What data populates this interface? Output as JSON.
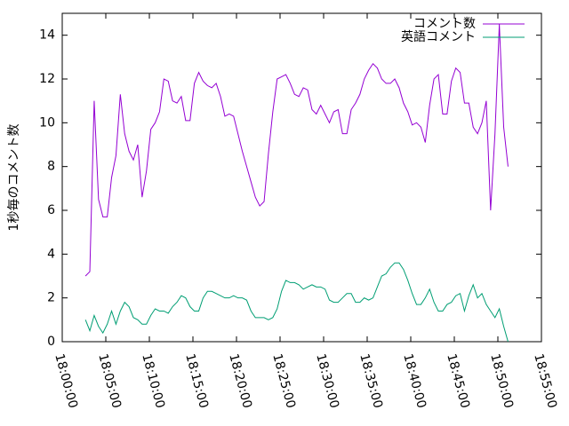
{
  "chart_data": {
    "type": "line",
    "y_label": "1秒毎のコメント数",
    "x": [
      "18:02:40",
      "18:03:10",
      "18:03:40",
      "18:04:10",
      "18:04:40",
      "18:05:10",
      "18:05:40",
      "18:06:10",
      "18:06:40",
      "18:07:10",
      "18:07:40",
      "18:08:10",
      "18:08:40",
      "18:09:10",
      "18:09:40",
      "18:10:10",
      "18:10:40",
      "18:11:10",
      "18:11:40",
      "18:12:10",
      "18:12:40",
      "18:13:10",
      "18:13:40",
      "18:14:10",
      "18:14:40",
      "18:15:10",
      "18:15:40",
      "18:16:10",
      "18:16:40",
      "18:17:10",
      "18:17:40",
      "18:18:10",
      "18:18:40",
      "18:19:10",
      "18:19:40",
      "18:20:10",
      "18:20:40",
      "18:21:10",
      "18:21:40",
      "18:22:10",
      "18:22:40",
      "18:23:10",
      "18:23:40",
      "18:24:10",
      "18:24:40",
      "18:25:10",
      "18:25:40",
      "18:26:10",
      "18:26:40",
      "18:27:10",
      "18:27:40",
      "18:28:10",
      "18:28:40",
      "18:29:10",
      "18:29:40",
      "18:30:10",
      "18:30:40",
      "18:31:10",
      "18:31:40",
      "18:32:10",
      "18:32:40",
      "18:33:10",
      "18:33:40",
      "18:34:10",
      "18:34:40",
      "18:35:10",
      "18:35:40",
      "18:36:10",
      "18:36:40",
      "18:37:10",
      "18:37:40",
      "18:38:10",
      "18:38:40",
      "18:39:10",
      "18:39:40",
      "18:40:10",
      "18:40:40",
      "18:41:10",
      "18:41:40",
      "18:42:10",
      "18:42:40",
      "18:43:10",
      "18:43:40",
      "18:44:10",
      "18:44:40",
      "18:45:10",
      "18:45:40",
      "18:46:10",
      "18:46:40",
      "18:47:10",
      "18:47:40",
      "18:48:10",
      "18:48:40",
      "18:49:10",
      "18:49:40",
      "18:50:10",
      "18:50:40",
      "18:51:10"
    ],
    "series": [
      {
        "name": "コメント数",
        "color": "#9400d3",
        "values": [
          3.0,
          3.2,
          11.0,
          6.5,
          5.7,
          5.7,
          7.5,
          8.5,
          11.3,
          9.5,
          8.7,
          8.3,
          9.0,
          6.6,
          7.8,
          9.7,
          10.0,
          10.5,
          12.0,
          11.9,
          11.0,
          10.9,
          11.2,
          10.1,
          10.1,
          11.8,
          12.3,
          11.9,
          11.7,
          11.6,
          11.8,
          11.2,
          10.3,
          10.4,
          10.3,
          9.5,
          8.7,
          8.0,
          7.3,
          6.6,
          6.2,
          6.4,
          8.6,
          10.5,
          12.0,
          12.1,
          12.2,
          11.8,
          11.3,
          11.2,
          11.6,
          11.5,
          10.6,
          10.4,
          10.8,
          10.4,
          10.0,
          10.5,
          10.6,
          9.5,
          9.5,
          10.6,
          10.9,
          11.3,
          12.0,
          12.4,
          12.7,
          12.5,
          12.0,
          11.8,
          11.8,
          12.0,
          11.6,
          10.9,
          10.5,
          9.9,
          10.0,
          9.8,
          9.1,
          10.8,
          12.0,
          12.2,
          10.4,
          10.4,
          11.9,
          12.5,
          12.3,
          10.9,
          10.9,
          9.8,
          9.5,
          10.0,
          11.0,
          6.0,
          9.5,
          14.5,
          9.8,
          8.0
        ]
      },
      {
        "name": "英語コメント",
        "color": "#009e73",
        "values": [
          1.0,
          0.5,
          1.2,
          0.7,
          0.4,
          0.8,
          1.4,
          0.8,
          1.4,
          1.8,
          1.6,
          1.1,
          1.0,
          0.8,
          0.8,
          1.2,
          1.5,
          1.4,
          1.4,
          1.3,
          1.6,
          1.8,
          2.1,
          2.0,
          1.6,
          1.4,
          1.4,
          2.0,
          2.3,
          2.3,
          2.2,
          2.1,
          2.0,
          2.0,
          2.1,
          2.0,
          2.0,
          1.9,
          1.4,
          1.1,
          1.1,
          1.1,
          1.0,
          1.1,
          1.5,
          2.3,
          2.8,
          2.7,
          2.7,
          2.6,
          2.4,
          2.5,
          2.6,
          2.5,
          2.5,
          2.4,
          1.9,
          1.8,
          1.8,
          2.0,
          2.2,
          2.2,
          1.8,
          1.8,
          2.0,
          1.9,
          2.0,
          2.5,
          3.0,
          3.1,
          3.4,
          3.6,
          3.6,
          3.3,
          2.8,
          2.2,
          1.7,
          1.7,
          2.0,
          2.4,
          1.8,
          1.4,
          1.4,
          1.7,
          1.8,
          2.1,
          2.2,
          1.4,
          2.1,
          2.6,
          2.0,
          2.2,
          1.7,
          1.4,
          1.1,
          1.5,
          0.7,
          0.0
        ]
      }
    ],
    "xlim": [
      "18:00:00",
      "18:55:00"
    ],
    "xticks": [
      "18:00:00",
      "18:05:00",
      "18:10:00",
      "18:15:00",
      "18:20:00",
      "18:25:00",
      "18:30:00",
      "18:35:00",
      "18:40:00",
      "18:45:00",
      "18:50:00",
      "18:55:00"
    ],
    "ylim": [
      0,
      15
    ],
    "yticks": [
      0,
      2,
      4,
      6,
      8,
      10,
      12,
      14
    ],
    "legend": "top-right"
  }
}
